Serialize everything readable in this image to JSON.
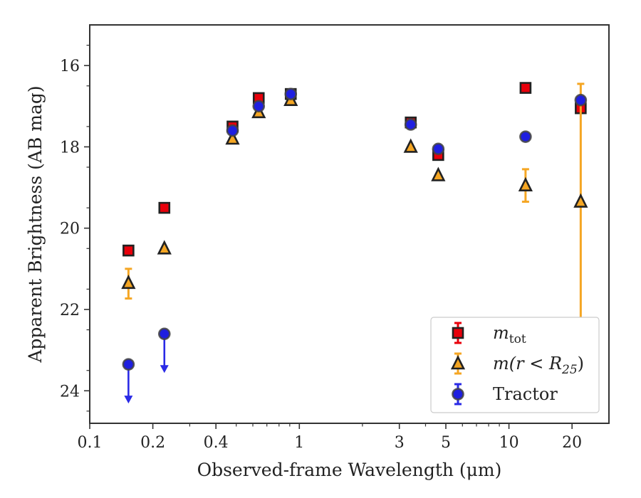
{
  "chart_data": {
    "type": "scatter",
    "x_scale": "log",
    "xlabel": "Observed-frame Wavelength (μm)",
    "ylabel": "Apparent Brightness (AB mag)",
    "xlim": [
      0.1,
      30
    ],
    "ylim": [
      24.8,
      15.0
    ],
    "y_inverted": true,
    "x_ticks": [
      {
        "value": 0.1,
        "label": "0.1"
      },
      {
        "value": 0.2,
        "label": "0.2"
      },
      {
        "value": 0.4,
        "label": "0.4"
      },
      {
        "value": 1,
        "label": "1"
      },
      {
        "value": 3,
        "label": "3"
      },
      {
        "value": 5,
        "label": "5"
      },
      {
        "value": 10,
        "label": "10"
      },
      {
        "value": 20,
        "label": "20"
      }
    ],
    "y_ticks": [
      {
        "value": 16,
        "label": "16"
      },
      {
        "value": 18,
        "label": "18"
      },
      {
        "value": 20,
        "label": "20"
      },
      {
        "value": 22,
        "label": "22"
      },
      {
        "value": 24,
        "label": "24"
      }
    ],
    "grid": false,
    "legend_position": "lower-right",
    "series": [
      {
        "name": "m_tot",
        "legend_label": "m",
        "legend_sub": "tot",
        "marker": "square",
        "face_color": "#e8000b",
        "edge_color": "#222222",
        "error_color": "#e8000b",
        "points": [
          {
            "x": 0.153,
            "y": 20.55
          },
          {
            "x": 0.227,
            "y": 19.5
          },
          {
            "x": 0.48,
            "y": 17.5
          },
          {
            "x": 0.64,
            "y": 16.8
          },
          {
            "x": 0.91,
            "y": 16.7
          },
          {
            "x": 3.4,
            "y": 17.4
          },
          {
            "x": 4.6,
            "y": 18.2
          },
          {
            "x": 12.0,
            "y": 16.55
          },
          {
            "x": 22.0,
            "y": 17.05
          }
        ]
      },
      {
        "name": "m(r<R25)",
        "legend_label": "m(r < R",
        "legend_sub": "25",
        "legend_suffix": ")",
        "marker": "triangle",
        "face_color": "#f5a623",
        "edge_color": "#222222",
        "error_color": "#f5a623",
        "points": [
          {
            "x": 0.153,
            "y": 21.35,
            "err_low": 0.35,
            "err_high": 0.38
          },
          {
            "x": 0.227,
            "y": 20.5
          },
          {
            "x": 0.48,
            "y": 17.8
          },
          {
            "x": 0.64,
            "y": 17.15
          },
          {
            "x": 0.91,
            "y": 16.85
          },
          {
            "x": 3.4,
            "y": 18.0
          },
          {
            "x": 4.6,
            "y": 18.7
          },
          {
            "x": 12.0,
            "y": 18.95,
            "err_low": 0.4,
            "err_high": 0.4
          },
          {
            "x": 22.0,
            "y": 19.35,
            "err_low": 2.9,
            "err_high": 2.95
          }
        ]
      },
      {
        "name": "Tractor",
        "legend_label": "Tractor",
        "marker": "circle",
        "face_color": "#1f1fe0",
        "edge_color": "#444444",
        "error_color": "#2a2ae6",
        "points": [
          {
            "x": 0.153,
            "y": 23.35,
            "upper_limit": true
          },
          {
            "x": 0.227,
            "y": 22.6,
            "upper_limit": true
          },
          {
            "x": 0.48,
            "y": 17.6
          },
          {
            "x": 0.64,
            "y": 17.0
          },
          {
            "x": 0.91,
            "y": 16.7
          },
          {
            "x": 3.4,
            "y": 17.45
          },
          {
            "x": 4.6,
            "y": 18.05
          },
          {
            "x": 12.0,
            "y": 17.75
          },
          {
            "x": 22.0,
            "y": 16.85
          }
        ]
      }
    ]
  }
}
